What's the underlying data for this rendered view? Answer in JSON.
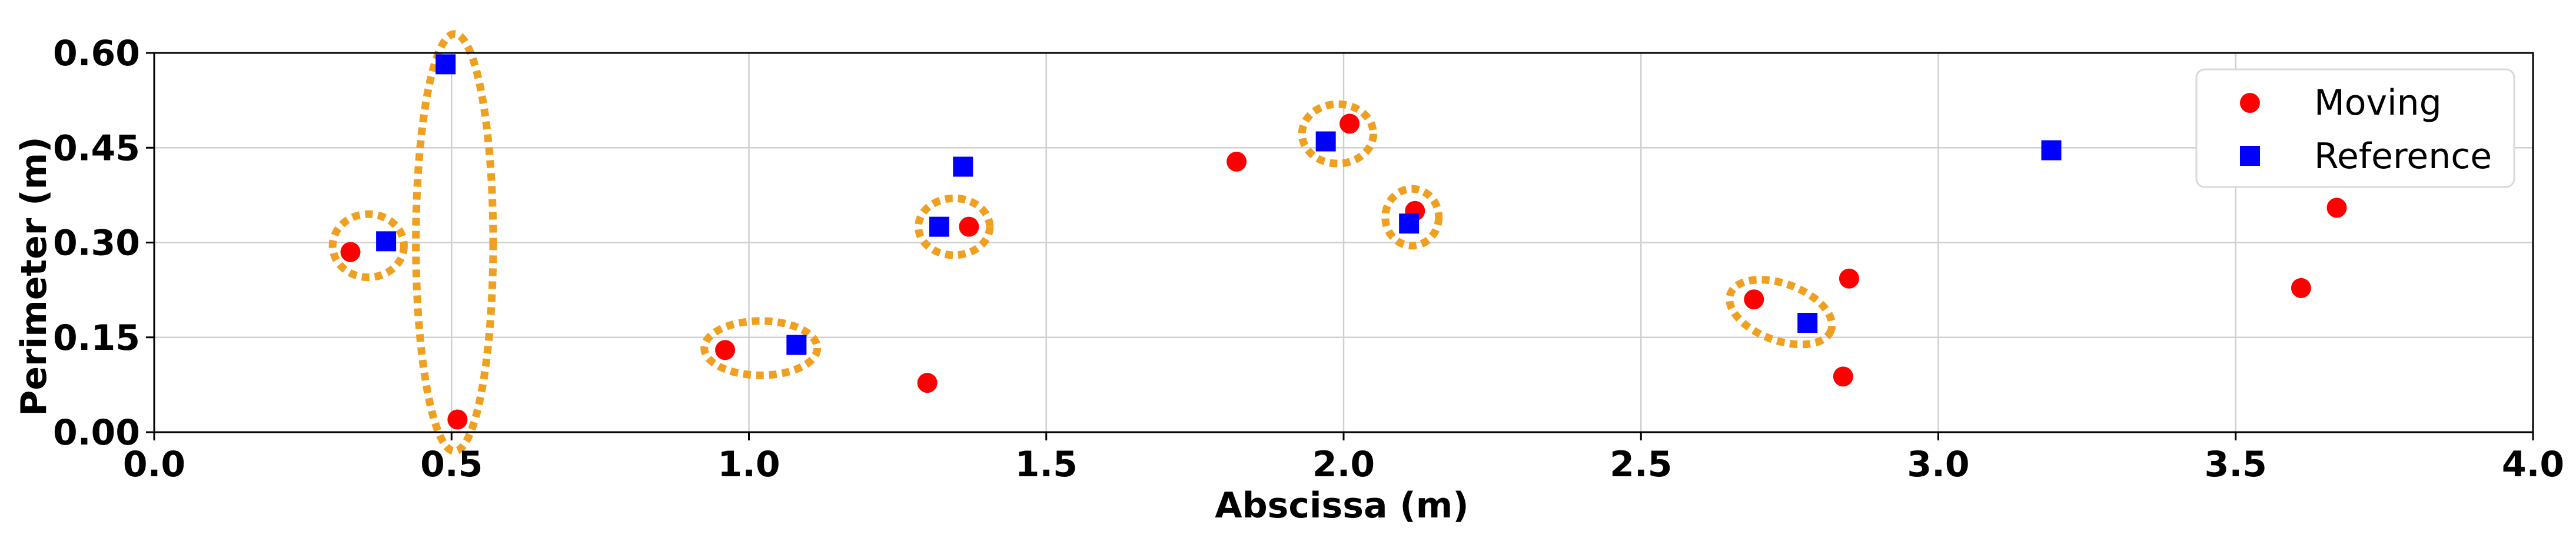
{
  "chart_data": {
    "type": "scatter",
    "xlabel": "Abscissa (m)",
    "ylabel": "Perimeter (m)",
    "xlim": [
      0.0,
      4.0
    ],
    "ylim": [
      0.0,
      0.6
    ],
    "x_ticks": [
      "0.0",
      "0.5",
      "1.0",
      "1.5",
      "2.0",
      "2.5",
      "3.0",
      "3.5",
      "4.0"
    ],
    "y_ticks": [
      "0.00",
      "0.15",
      "0.30",
      "0.45",
      "0.60"
    ],
    "grid": true,
    "legend_position": "top-right",
    "series": [
      {
        "name": "Moving",
        "marker": "circle",
        "color": "#ff0000",
        "points": [
          {
            "x": 0.33,
            "y": 0.285
          },
          {
            "x": 0.51,
            "y": 0.02
          },
          {
            "x": 0.96,
            "y": 0.13
          },
          {
            "x": 1.3,
            "y": 0.078
          },
          {
            "x": 1.37,
            "y": 0.325
          },
          {
            "x": 1.82,
            "y": 0.428
          },
          {
            "x": 2.01,
            "y": 0.488
          },
          {
            "x": 2.12,
            "y": 0.35
          },
          {
            "x": 2.69,
            "y": 0.21
          },
          {
            "x": 2.84,
            "y": 0.088
          },
          {
            "x": 2.85,
            "y": 0.243
          },
          {
            "x": 3.61,
            "y": 0.228
          },
          {
            "x": 3.67,
            "y": 0.355
          }
        ]
      },
      {
        "name": "Reference",
        "marker": "square",
        "color": "#0000ff",
        "points": [
          {
            "x": 0.39,
            "y": 0.302
          },
          {
            "x": 0.49,
            "y": 0.582
          },
          {
            "x": 1.08,
            "y": 0.138
          },
          {
            "x": 1.32,
            "y": 0.325
          },
          {
            "x": 1.36,
            "y": 0.42
          },
          {
            "x": 1.97,
            "y": 0.46
          },
          {
            "x": 2.11,
            "y": 0.33
          },
          {
            "x": 2.78,
            "y": 0.173
          },
          {
            "x": 3.19,
            "y": 0.446
          }
        ]
      }
    ],
    "highlight_ellipses": {
      "style": "dotted",
      "color": "#f0a020",
      "items": [
        {
          "center": [
            0.36,
            0.295
          ],
          "radius": [
            0.06,
            0.05
          ]
        },
        {
          "center": [
            0.505,
            0.3
          ],
          "radius": [
            0.065,
            0.33
          ]
        },
        {
          "center": [
            1.02,
            0.133
          ],
          "radius": [
            0.095,
            0.043
          ]
        },
        {
          "center": [
            1.345,
            0.325
          ],
          "radius": [
            0.06,
            0.045
          ]
        },
        {
          "center": [
            1.99,
            0.472
          ],
          "radius": [
            0.06,
            0.047
          ]
        },
        {
          "center": [
            2.115,
            0.34
          ],
          "radius": [
            0.045,
            0.045
          ]
        },
        {
          "center": [
            2.735,
            0.19
          ],
          "radius": [
            0.09,
            0.045
          ],
          "rotation_deg": 20
        }
      ]
    }
  }
}
